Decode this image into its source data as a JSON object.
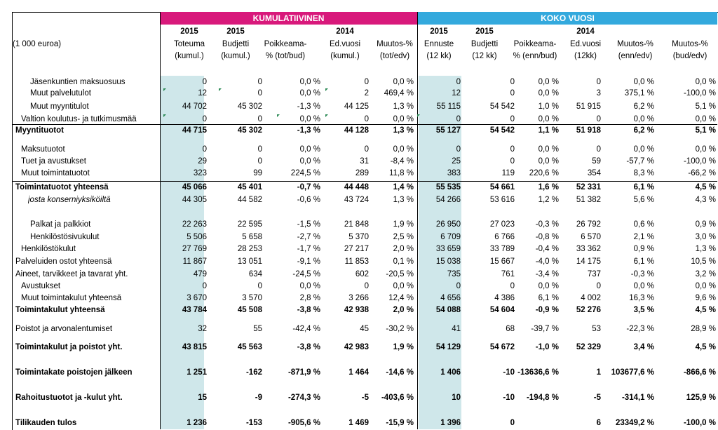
{
  "headers": {
    "band_kum": "KUMULATIIVINEN",
    "band_koko": "KOKO VUOSI",
    "unit": "(1 000 euroa)",
    "years": [
      "2015",
      "2015",
      "2014",
      "2015",
      "2015",
      "2014"
    ],
    "cols": [
      [
        "Toteuma",
        "(kumul.)"
      ],
      [
        "Budjetti",
        "(kumul.)"
      ],
      [
        "Poikkeama-",
        "% (tot/bud)"
      ],
      [
        "Ed.vuosi",
        "(kumul.)"
      ],
      [
        "Muutos-%",
        "(tot/edv)"
      ],
      [
        "Ennuste",
        "(12 kk)"
      ],
      [
        "Budjetti",
        "(12 kk)"
      ],
      [
        "Poikkeama-",
        "% (enn/bud)"
      ],
      [
        "Ed.vuosi",
        "(12kk)"
      ],
      [
        "Muutos-%",
        "(enn/edv)"
      ],
      [
        "Muutos-%",
        "(bud/edv)"
      ]
    ]
  },
  "rows": [
    {
      "label": "Jäsenkuntien maksuosuus",
      "v": [
        "0",
        "0",
        "0,0 %",
        "0",
        "0,0 %",
        "0",
        "0",
        "0,0 %",
        "0",
        "0,0 %",
        "0,0 %"
      ]
    },
    {
      "label": "Muut palvelutulot",
      "v": [
        "12",
        "0",
        "0,0 %",
        "2",
        "469,4 %",
        "12",
        "0",
        "0,0 %",
        "3",
        "375,1 %",
        "-100,0 %"
      ]
    },
    {
      "label": "Muut myyntitulot",
      "v": [
        "44 702",
        "45 302",
        "-1,3 %",
        "44 125",
        "1,3 %",
        "55 115",
        "54 542",
        "1,0 %",
        "51 915",
        "6,2 %",
        "5,1 %"
      ]
    },
    {
      "label": "Valtion koulutus- ja tutkimusmää",
      "v": [
        "0",
        "0",
        "0,0 %",
        "0",
        "0,0 %",
        "0",
        "0",
        "0,0 %",
        "0",
        "0,0 %",
        "0,0 %"
      ]
    },
    {
      "label": "Myyntituotot",
      "v": [
        "44 715",
        "45 302",
        "-1,3 %",
        "44 128",
        "1,3 %",
        "55 127",
        "54 542",
        "1,1 %",
        "51 918",
        "6,2 %",
        "5,1 %"
      ]
    },
    {
      "label": "Maksutuotot",
      "v": [
        "0",
        "0",
        "0,0 %",
        "0",
        "0,0 %",
        "0",
        "0",
        "0,0 %",
        "0",
        "0,0 %",
        "0,0 %"
      ]
    },
    {
      "label": "Tuet ja avustukset",
      "v": [
        "29",
        "0",
        "0,0 %",
        "31",
        "-8,4 %",
        "25",
        "0",
        "0,0 %",
        "59",
        "-57,7 %",
        "-100,0 %"
      ]
    },
    {
      "label": "Muut toimintatuotot",
      "v": [
        "323",
        "99",
        "224,5 %",
        "289",
        "11,8 %",
        "383",
        "119",
        "220,6 %",
        "354",
        "8,3 %",
        "-66,2 %"
      ]
    },
    {
      "label": "Toimintatuotot yhteensä",
      "v": [
        "45 066",
        "45 401",
        "-0,7 %",
        "44 448",
        "1,4 %",
        "55 535",
        "54 661",
        "1,6 %",
        "52 331",
        "6,1 %",
        "4,5 %"
      ]
    },
    {
      "label": "josta konserniyksiköiltä",
      "v": [
        "44 305",
        "44 582",
        "-0,6 %",
        "43 724",
        "1,3 %",
        "54 266",
        "53 616",
        "1,2 %",
        "51 382",
        "5,6 %",
        "4,3 %"
      ]
    },
    {
      "label": "Palkat ja palkkiot",
      "v": [
        "22 263",
        "22 595",
        "-1,5 %",
        "21 848",
        "1,9 %",
        "26 950",
        "27 023",
        "-0,3 %",
        "26 792",
        "0,6 %",
        "0,9 %"
      ]
    },
    {
      "label": "Henkilöstösivukulut",
      "v": [
        "5 506",
        "5 658",
        "-2,7 %",
        "5 370",
        "2,5 %",
        "6 709",
        "6 766",
        "-0,8 %",
        "6 570",
        "2,1 %",
        "3,0 %"
      ]
    },
    {
      "label": "Henkilöstökulut",
      "v": [
        "27 769",
        "28 253",
        "-1,7 %",
        "27 217",
        "2,0 %",
        "33 659",
        "33 789",
        "-0,4 %",
        "33 362",
        "0,9 %",
        "1,3 %"
      ]
    },
    {
      "label": "Palveluiden ostot yhteensä",
      "v": [
        "11 867",
        "13 051",
        "-9,1 %",
        "11 853",
        "0,1 %",
        "15 038",
        "15 667",
        "-4,0 %",
        "14 175",
        "6,1 %",
        "10,5 %"
      ]
    },
    {
      "label": "Aineet, tarvikkeet ja tavarat yht.",
      "v": [
        "479",
        "634",
        "-24,5 %",
        "602",
        "-20,5 %",
        "735",
        "761",
        "-3,4 %",
        "737",
        "-0,3 %",
        "3,2 %"
      ]
    },
    {
      "label": "Avustukset",
      "v": [
        "0",
        "0",
        "0,0 %",
        "0",
        "0,0 %",
        "0",
        "0",
        "0,0 %",
        "0",
        "0,0 %",
        "0,0 %"
      ]
    },
    {
      "label": "Muut toimintakulut yhteensä",
      "v": [
        "3 670",
        "3 570",
        "2,8 %",
        "3 266",
        "12,4 %",
        "4 656",
        "4 386",
        "6,1 %",
        "4 002",
        "16,3 %",
        "9,6 %"
      ]
    },
    {
      "label": "Toimintakulut yhteensä",
      "v": [
        "43 784",
        "45 508",
        "-3,8 %",
        "42 938",
        "2,0 %",
        "54 088",
        "54 604",
        "-0,9 %",
        "52 276",
        "3,5 %",
        "4,5 %"
      ]
    },
    {
      "label": "Poistot ja arvonalentumiset",
      "v": [
        "32",
        "55",
        "-42,4 %",
        "45",
        "-30,2 %",
        "41",
        "68",
        "-39,7 %",
        "53",
        "-22,3 %",
        "28,9 %"
      ]
    },
    {
      "label": "Toimintakulut ja poistot yht.",
      "v": [
        "43 815",
        "45 563",
        "-3,8 %",
        "42 983",
        "1,9 %",
        "54 129",
        "54 672",
        "-1,0 %",
        "52 329",
        "3,4 %",
        "4,5 %"
      ]
    },
    {
      "label": "Toimintakate poistojen jälkeen",
      "v": [
        "1 251",
        "-162",
        "-871,9 %",
        "1 464",
        "-14,6 %",
        "1 406",
        "-10",
        "-13636,6 %",
        "1",
        "103677,6 %",
        "-866,6 %"
      ]
    },
    {
      "label": "Rahoitustuotot ja -kulut yht.",
      "v": [
        "15",
        "-9",
        "-274,3 %",
        "-5",
        "-403,6 %",
        "10",
        "-10",
        "-194,8 %",
        "-5",
        "-314,1 %",
        "125,9 %"
      ]
    },
    {
      "label": "Tilikauden tulos",
      "v": [
        "1 236",
        "-153",
        "-905,6 %",
        "1 469",
        "-15,9 %",
        "1 396",
        "0",
        "",
        "6",
        "23349,2 %",
        "-100,0 %"
      ]
    }
  ]
}
